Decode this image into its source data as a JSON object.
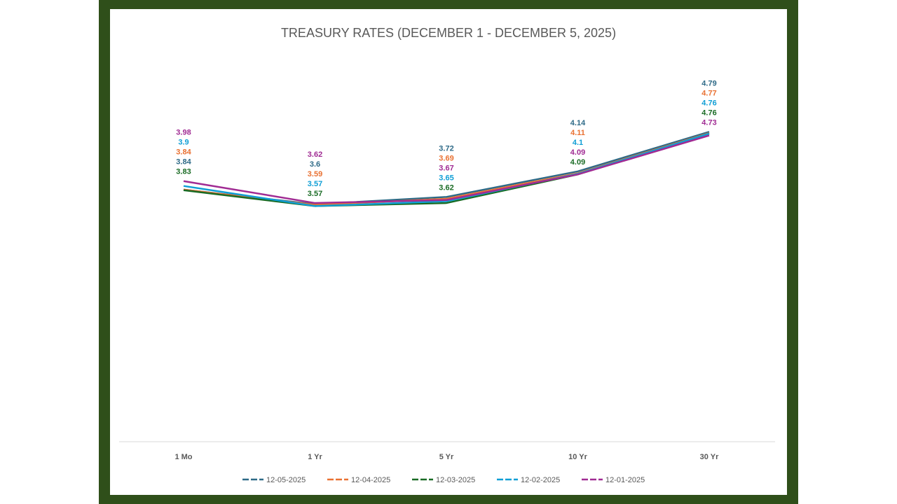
{
  "chart_data": {
    "type": "line",
    "title": "TREASURY RATES (DECEMBER 1 - DECEMBER 5, 2025)",
    "categories": [
      "1 Mo",
      "1 Yr",
      "5 Yr",
      "10 Yr",
      "30 Yr"
    ],
    "series": [
      {
        "name": "12-05-2025",
        "color": "#2e6a87",
        "values": [
          3.84,
          3.6,
          3.72,
          4.14,
          4.79
        ]
      },
      {
        "name": "12-04-2025",
        "color": "#e97132",
        "values": [
          3.84,
          3.59,
          3.69,
          4.11,
          4.77
        ]
      },
      {
        "name": "12-03-2025",
        "color": "#196b24",
        "values": [
          3.83,
          3.57,
          3.62,
          4.09,
          4.76
        ]
      },
      {
        "name": "12-02-2025",
        "color": "#0f9ed5",
        "values": [
          3.9,
          3.57,
          3.65,
          4.1,
          4.76
        ]
      },
      {
        "name": "12-01-2025",
        "color": "#a02b93",
        "values": [
          3.98,
          3.62,
          3.67,
          4.09,
          4.73
        ]
      }
    ],
    "data_labels": true,
    "grid": false,
    "legend": "bottom",
    "frame_color": "#2f4f1a"
  }
}
